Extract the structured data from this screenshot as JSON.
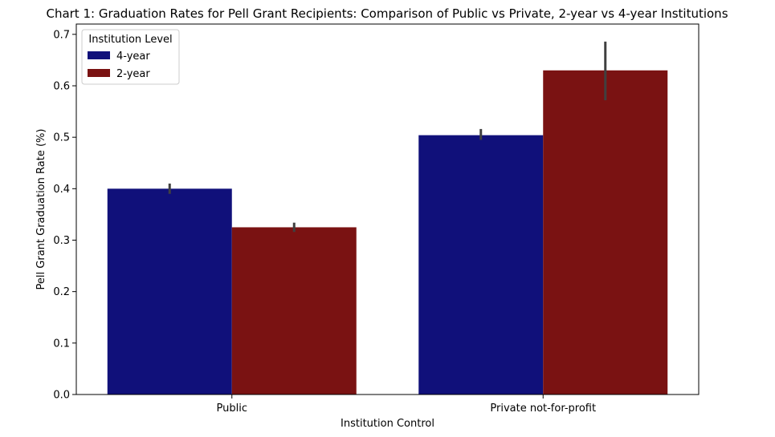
{
  "chart_data": {
    "type": "bar",
    "title": "Chart 1: Graduation Rates for Pell Grant Recipients: Comparison of Public vs Private, 2-year vs 4-year Institutions",
    "xlabel": "Institution Control",
    "ylabel": "Pell Grant Graduation Rate (%)",
    "categories": [
      "Public",
      "Private not-for-profit"
    ],
    "ylim": [
      0,
      0.72
    ],
    "yticks": [
      0.0,
      0.1,
      0.2,
      0.3,
      0.4,
      0.5,
      0.6,
      0.7
    ],
    "ytick_labels": [
      "0.0",
      "0.1",
      "0.2",
      "0.3",
      "0.4",
      "0.5",
      "0.6",
      "0.7"
    ],
    "legend": {
      "title": "Institution Level",
      "placement": "top-left"
    },
    "series": [
      {
        "name": "4-year",
        "color": "#10107a",
        "values": [
          0.4,
          0.504
        ],
        "error_low": [
          0.39,
          0.495
        ],
        "error_high": [
          0.41,
          0.516
        ]
      },
      {
        "name": "2-year",
        "color": "#7a1212",
        "values": [
          0.325,
          0.63
        ],
        "error_low": [
          0.316,
          0.572
        ],
        "error_high": [
          0.334,
          0.686
        ]
      }
    ],
    "error_bar_color": "#404040",
    "grid": false
  }
}
